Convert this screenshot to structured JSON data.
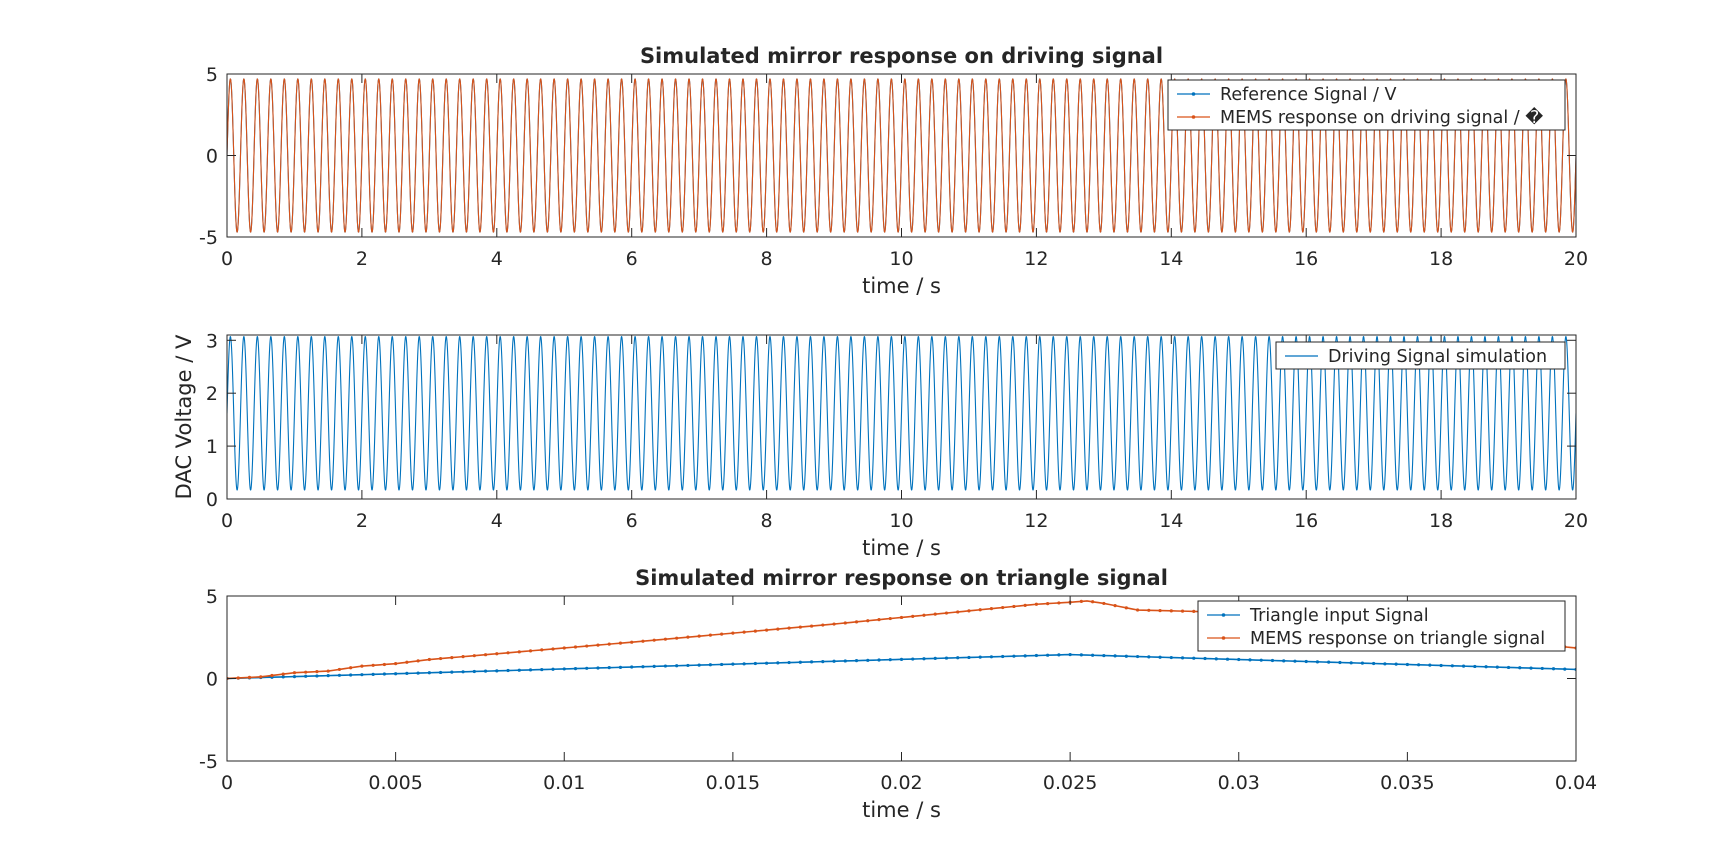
{
  "colors": {
    "blue": "#0072BD",
    "orange": "#D95319",
    "axis": "#262626"
  },
  "chart_data": [
    {
      "type": "line",
      "title": "Simulated mirror response on driving signal",
      "xlabel": "time / s",
      "ylabel": "",
      "xlim": [
        0,
        20
      ],
      "ylim": [
        -5,
        5
      ],
      "xticks": [
        0,
        2,
        4,
        6,
        8,
        10,
        12,
        14,
        16,
        18,
        20
      ],
      "xtick_labels": [
        "0",
        "2",
        "4",
        "6",
        "8",
        "10",
        "12",
        "14",
        "16",
        "18",
        "20"
      ],
      "yticks": [
        -5,
        0,
        5
      ],
      "ytick_labels": [
        "-5",
        "0",
        "5"
      ],
      "legend_position": "top-right",
      "series": [
        {
          "name": "Reference Signal / V",
          "color": "#0072BD",
          "marker": "dot",
          "waveform": "sine",
          "frequency_hz": 5,
          "amplitude": 4.7,
          "offset": 0
        },
        {
          "name": "MEMS response on driving signal / �",
          "color": "#D95319",
          "marker": "dot",
          "waveform": "sine",
          "frequency_hz": 5,
          "amplitude": 4.7,
          "offset": 0
        }
      ]
    },
    {
      "type": "line",
      "title": "",
      "xlabel": "time / s",
      "ylabel": "DAC Voltage / V",
      "xlim": [
        0,
        20
      ],
      "ylim": [
        0,
        3.1
      ],
      "xticks": [
        0,
        2,
        4,
        6,
        8,
        10,
        12,
        14,
        16,
        18,
        20
      ],
      "xtick_labels": [
        "0",
        "2",
        "4",
        "6",
        "8",
        "10",
        "12",
        "14",
        "16",
        "18",
        "20"
      ],
      "yticks": [
        0,
        1,
        2,
        3
      ],
      "ytick_labels": [
        "0",
        "1",
        "2",
        "3"
      ],
      "legend_position": "top-right",
      "series": [
        {
          "name": "Driving Signal simulation",
          "color": "#0072BD",
          "marker": "none",
          "waveform": "sine",
          "frequency_hz": 5,
          "amplitude": 1.45,
          "offset": 1.62
        }
      ]
    },
    {
      "type": "line",
      "title": "Simulated mirror response on triangle signal",
      "xlabel": "time / s",
      "ylabel": "",
      "xlim": [
        0,
        0.04
      ],
      "ylim": [
        -5,
        5
      ],
      "xticks": [
        0,
        0.005,
        0.01,
        0.015,
        0.02,
        0.025,
        0.03,
        0.035,
        0.04
      ],
      "xtick_labels": [
        "0",
        "0.005",
        "0.01",
        "0.015",
        "0.02",
        "0.025",
        "0.03",
        "0.035",
        "0.04"
      ],
      "yticks": [
        -5,
        0,
        5
      ],
      "ytick_labels": [
        "-5",
        "0",
        "5"
      ],
      "legend_position": "top-right",
      "series": [
        {
          "name": "Triangle input Signal",
          "color": "#0072BD",
          "marker": "dot",
          "x": [
            0,
            0.025,
            0.04
          ],
          "y": [
            0,
            1.45,
            0.55
          ]
        },
        {
          "name": "MEMS response on triangle signal",
          "color": "#D95319",
          "marker": "dot",
          "x": [
            0,
            0.001,
            0.002,
            0.003,
            0.004,
            0.005,
            0.006,
            0.008,
            0.01,
            0.012,
            0.015,
            0.018,
            0.02,
            0.022,
            0.024,
            0.025,
            0.0255,
            0.026,
            0.027,
            0.028,
            0.029,
            0.03,
            0.032,
            0.034,
            0.036,
            0.038,
            0.04
          ],
          "y": [
            0,
            0.1,
            0.35,
            0.45,
            0.75,
            0.9,
            1.15,
            1.5,
            1.85,
            2.2,
            2.75,
            3.3,
            3.7,
            4.1,
            4.5,
            4.62,
            4.7,
            4.55,
            4.15,
            4.1,
            4.05,
            3.8,
            3.5,
            3.1,
            2.7,
            2.25,
            1.85
          ]
        }
      ]
    }
  ]
}
